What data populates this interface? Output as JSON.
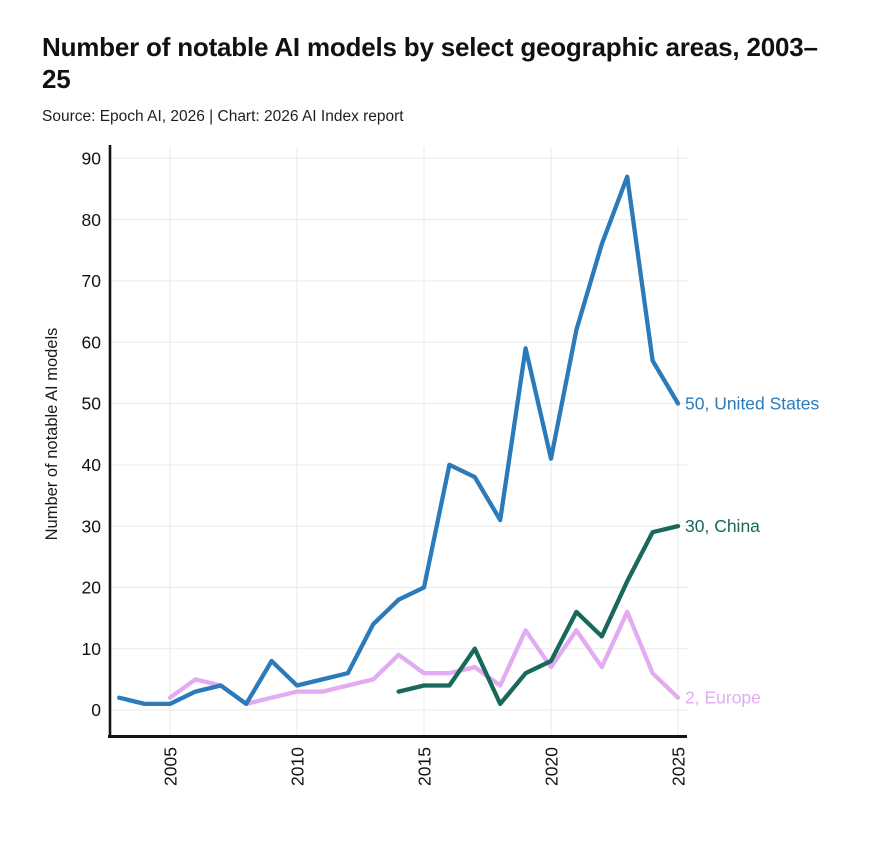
{
  "header": {
    "title": "Number of notable AI models by select geographic areas, 2003–25",
    "source_line": "Source: Epoch AI, 2026 | Chart: 2026 AI Index report"
  },
  "chart_data": {
    "type": "line",
    "title": "Number of notable AI models by select geographic areas, 2003–25",
    "subtitle": "Source: Epoch AI, 2026 | Chart: 2026 AI Index report",
    "xlabel": "",
    "ylabel": "Number of notable AI models",
    "xlim": [
      2003,
      2025
    ],
    "ylim": [
      0,
      90
    ],
    "xticks": [
      2005,
      2010,
      2015,
      2020,
      2025
    ],
    "yticks": [
      0,
      10,
      20,
      30,
      40,
      50,
      60,
      70,
      80,
      90
    ],
    "grid": true,
    "legend": "inline-end-labels",
    "series": [
      {
        "name": "Europe",
        "color": "#e3abf1",
        "start_year": 2005,
        "end_label": "2, Europe",
        "values": [
          2,
          5,
          4,
          1,
          2,
          3,
          3,
          4,
          5,
          9,
          6,
          6,
          7,
          4,
          13,
          7,
          13,
          7,
          16,
          6,
          2
        ]
      },
      {
        "name": "China",
        "color": "#18685c",
        "start_year": 2014,
        "end_label": "30, China",
        "values": [
          3,
          4,
          4,
          10,
          1,
          6,
          8,
          16,
          12,
          21,
          29,
          30
        ]
      },
      {
        "name": "United States",
        "color": "#2b7ab9",
        "start_year": 2003,
        "end_label": "50, United States",
        "values": [
          2,
          1,
          1,
          3,
          4,
          1,
          8,
          4,
          5,
          6,
          14,
          18,
          20,
          40,
          38,
          31,
          59,
          41,
          62,
          76,
          87,
          57,
          50
        ]
      }
    ],
    "colors": {
      "axis": "#151515",
      "grid": "#ededed",
      "tick_label": "#111111",
      "axis_title": "#1a1a1a"
    }
  }
}
